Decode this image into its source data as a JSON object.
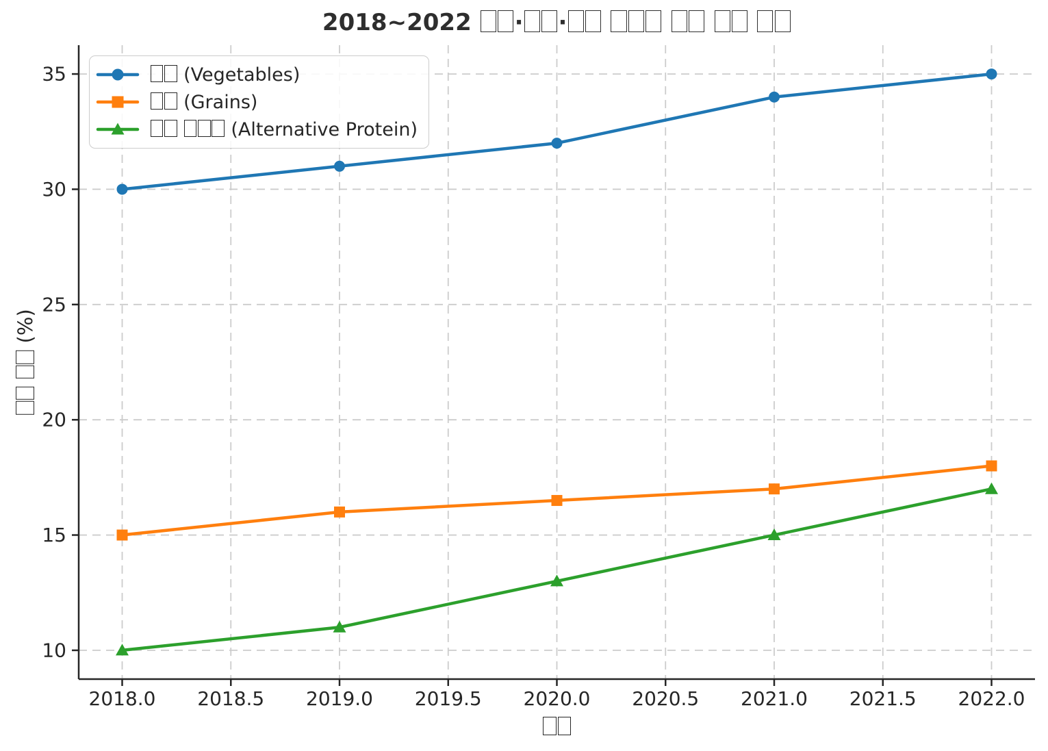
{
  "chart_data": {
    "type": "line",
    "title": "2018~2022 □□·□□·□□ □□□ □□ □□ □□",
    "xlabel": "□□",
    "ylabel": "□□ □□ (%)",
    "x": [
      2018,
      2019,
      2020,
      2021,
      2022
    ],
    "series": [
      {
        "name": "□□ (Vegetables)",
        "color": "#1f77b4",
        "marker": "circle",
        "values": [
          30,
          31,
          32,
          34,
          35
        ]
      },
      {
        "name": "□□ (Grains)",
        "color": "#ff7f0e",
        "marker": "square",
        "values": [
          15,
          16,
          16.5,
          17,
          18
        ]
      },
      {
        "name": "□□ □□□ (Alternative Protein)",
        "color": "#2ca02c",
        "marker": "triangle",
        "values": [
          10,
          11,
          13,
          15,
          17
        ]
      }
    ],
    "xlim": [
      2017.8,
      2022.2
    ],
    "ylim": [
      8.75,
      36.25
    ],
    "x_ticks": [
      2018.0,
      2018.5,
      2019.0,
      2019.5,
      2020.0,
      2020.5,
      2021.0,
      2021.5,
      2022.0
    ],
    "x_tick_labels": [
      "2018.0",
      "2018.5",
      "2019.0",
      "2019.5",
      "2020.0",
      "2020.5",
      "2021.0",
      "2021.5",
      "2022.0"
    ],
    "y_ticks": [
      10,
      15,
      20,
      25,
      30,
      35
    ],
    "y_tick_labels": [
      "10",
      "15",
      "20",
      "25",
      "30",
      "35"
    ],
    "grid": true,
    "grid_style": "dashed",
    "legend_position": "upper left",
    "note": "Korean label glyphs render as missing-glyph boxes (□) in the source image"
  },
  "colors": {
    "series_blue": "#1f77b4",
    "series_orange": "#ff7f0e",
    "series_green": "#2ca02c",
    "grid": "#cccccc",
    "spine": "#262626",
    "text": "#262626",
    "legend_border": "#cccccc",
    "background": "#ffffff"
  }
}
